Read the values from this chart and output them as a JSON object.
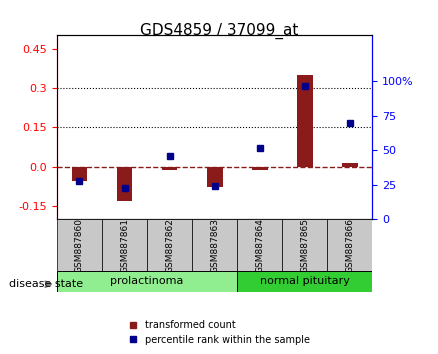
{
  "title": "GDS4859 / 37099_at",
  "samples": [
    "GSM887860",
    "GSM887861",
    "GSM887862",
    "GSM887863",
    "GSM887864",
    "GSM887865",
    "GSM887866"
  ],
  "transformed_count": [
    -0.055,
    -0.13,
    -0.01,
    -0.075,
    -0.01,
    0.35,
    0.015
  ],
  "percentile_rank": [
    28,
    23,
    46,
    24,
    52,
    97,
    70
  ],
  "groups": [
    {
      "label": "prolactinoma",
      "indices": [
        0,
        1,
        2,
        3
      ],
      "color": "#90EE90"
    },
    {
      "label": "normal pituitary",
      "indices": [
        4,
        5,
        6
      ],
      "color": "#32CD32"
    }
  ],
  "left_ylim": [
    -0.2,
    0.5
  ],
  "right_ylim": [
    0,
    133.33
  ],
  "left_yticks": [
    -0.15,
    0.0,
    0.15,
    0.3,
    0.45
  ],
  "right_yticks": [
    0,
    25,
    50,
    75,
    100
  ],
  "right_yticklabels": [
    "0",
    "25",
    "50",
    "75",
    "100%"
  ],
  "hlines": [
    0.15,
    0.3
  ],
  "bar_color": "#8B1A1A",
  "dot_color": "#00008B",
  "background_color": "#ffffff",
  "plot_bg_color": "#ffffff",
  "disease_state_label": "disease state",
  "legend_bar_label": "transformed count",
  "legend_dot_label": "percentile rank within the sample",
  "title_fontsize": 11,
  "tick_fontsize": 8,
  "label_fontsize": 8
}
